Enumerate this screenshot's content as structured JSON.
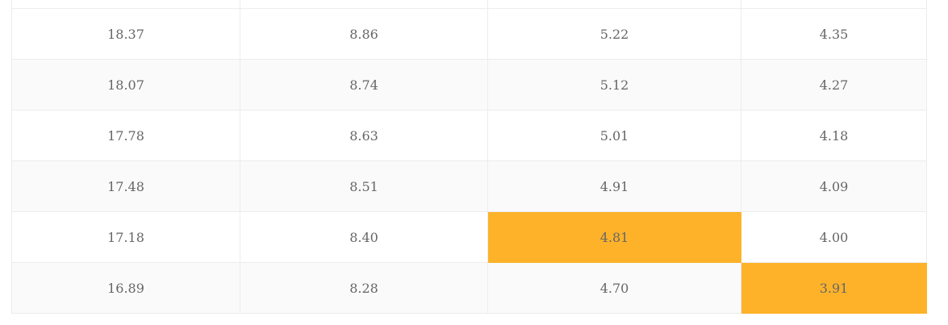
{
  "colors": {
    "highlight": "#fdb22a",
    "text": "#666666",
    "row_stripe": "#fafafa",
    "border": "#ececec"
  },
  "table": {
    "rows": [
      {
        "cells": [
          "18.37",
          "8.86",
          "5.22",
          "4.35"
        ],
        "highlight": []
      },
      {
        "cells": [
          "18.07",
          "8.74",
          "5.12",
          "4.27"
        ],
        "highlight": []
      },
      {
        "cells": [
          "17.78",
          "8.63",
          "5.01",
          "4.18"
        ],
        "highlight": []
      },
      {
        "cells": [
          "17.48",
          "8.51",
          "4.91",
          "4.09"
        ],
        "highlight": []
      },
      {
        "cells": [
          "17.18",
          "8.40",
          "4.81",
          "4.00"
        ],
        "highlight": [
          2
        ]
      },
      {
        "cells": [
          "16.89",
          "8.28",
          "4.70",
          "3.91"
        ],
        "highlight": [
          3
        ]
      }
    ]
  }
}
